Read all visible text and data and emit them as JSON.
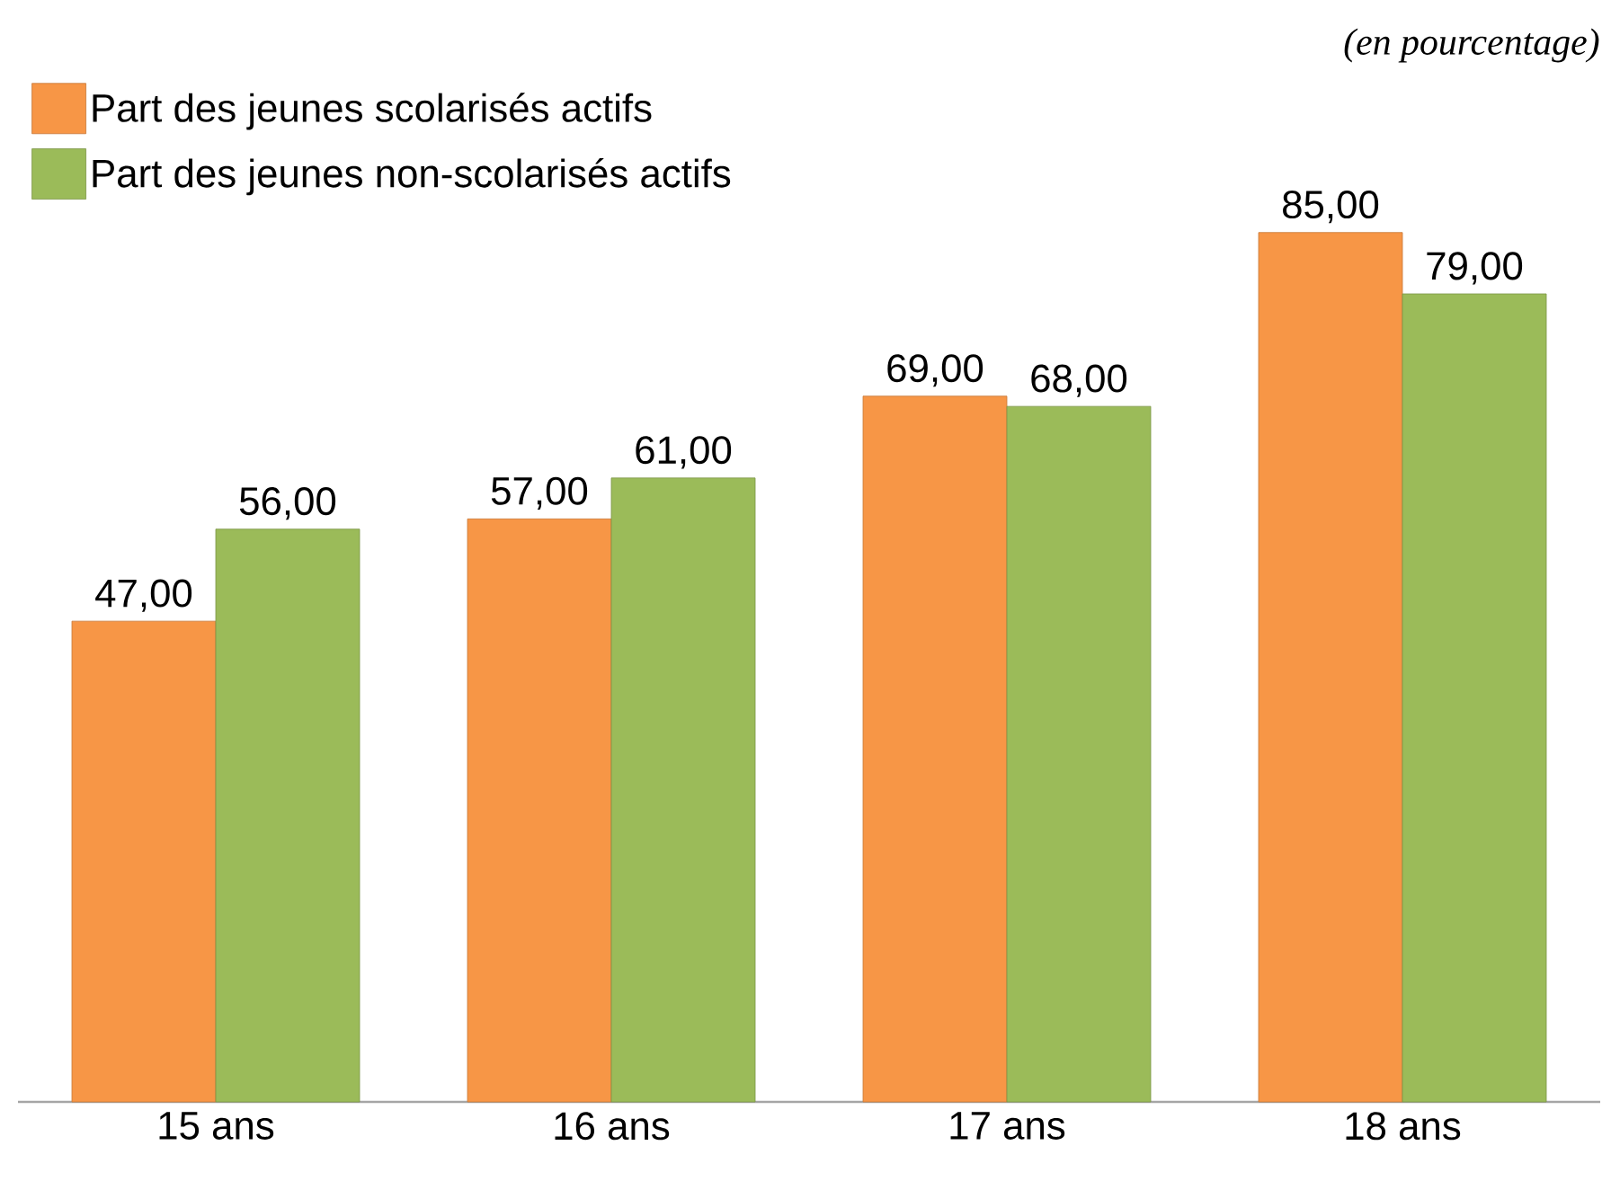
{
  "chart_data": {
    "type": "bar",
    "categories": [
      "15 ans",
      "16 ans",
      "17 ans",
      "18 ans"
    ],
    "series": [
      {
        "name": "Part des jeunes scolarisés actifs",
        "color": "#f79646",
        "values": [
          47,
          57,
          69,
          85
        ],
        "value_labels": [
          "47,00",
          "57,00",
          "69,00",
          "85,00"
        ]
      },
      {
        "name": "Part des jeunes non-scolarisés actifs",
        "color": "#9bbb59",
        "values": [
          56,
          61,
          68,
          79
        ],
        "value_labels": [
          "56,00",
          "61,00",
          "68,00",
          "79,00"
        ]
      }
    ],
    "ylim": [
      0,
      100
    ],
    "tick_labels": "x",
    "grid": false,
    "legend": "top left",
    "annotations": [
      "(en pourcentage)"
    ]
  }
}
